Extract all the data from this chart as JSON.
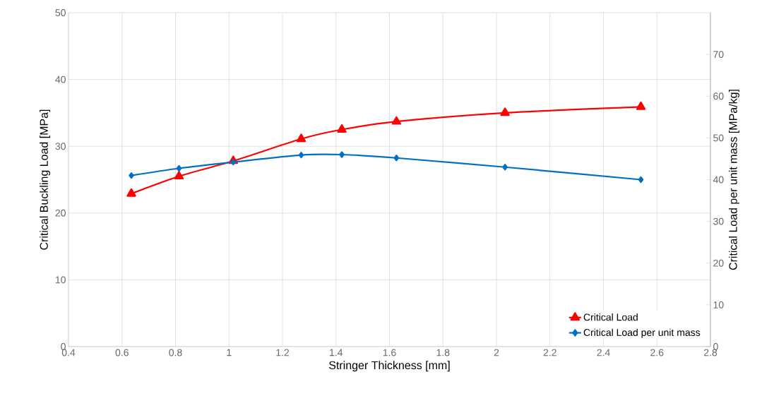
{
  "chart_data": {
    "type": "line",
    "xlabel": "Stringer Thickness [mm]",
    "ylabel": "Critical Buckling Load [MPa]",
    "y2label": "Critical Load per unit mass [MPa/kg]",
    "x": [
      0.635,
      0.813,
      1.016,
      1.27,
      1.422,
      1.626,
      2.032,
      2.54
    ],
    "series": [
      {
        "name": "Critical Load",
        "color": "#ff0000",
        "marker": "triangle",
        "values": [
          22.9,
          25.5,
          27.8,
          31.1,
          32.5,
          33.7,
          35.0,
          35.9
        ]
      },
      {
        "name": "Critical Load per unit mass",
        "color": "#0070c0",
        "marker": "diamond",
        "axis": "y2",
        "values": [
          41.0,
          42.7,
          44.2,
          45.9,
          46.0,
          45.2,
          43.0,
          40.0
        ]
      }
    ],
    "xlim": [
      0.4,
      2.8
    ],
    "xticks": [
      0.4,
      0.6,
      0.8,
      1,
      1.2,
      1.4,
      1.6,
      1.8,
      2,
      2.2,
      2.4,
      2.6,
      2.8
    ],
    "ylim": [
      0,
      50
    ],
    "yticks": [
      0,
      10,
      20,
      30,
      40,
      50
    ],
    "y2lim": [
      0,
      80
    ],
    "y2ticks": [
      0,
      10,
      20,
      30,
      40,
      50,
      60,
      70
    ],
    "grid": true,
    "legend": "bottom right",
    "line_style": "solid"
  }
}
